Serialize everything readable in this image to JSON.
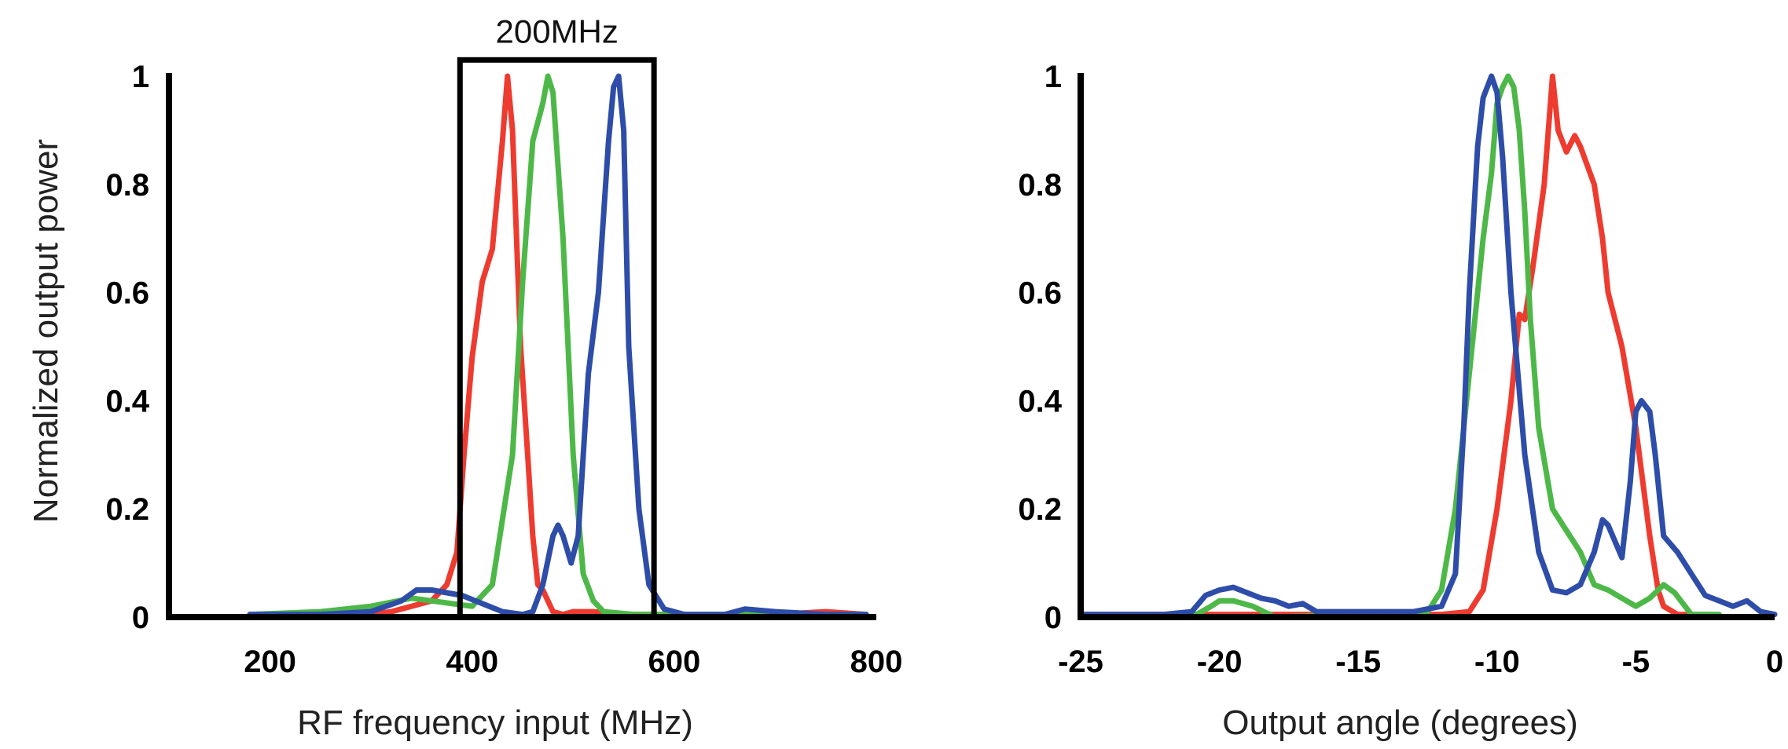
{
  "chart_data": [
    {
      "type": "line",
      "title": "",
      "xlabel": "RF frequency input (MHz)",
      "ylabel": "Normalized output power",
      "xlim": [
        100,
        800
      ],
      "ylim": [
        0,
        1
      ],
      "xticks": [
        200,
        400,
        600,
        800
      ],
      "yticks": [
        0,
        0.2,
        0.4,
        0.6,
        0.8,
        1
      ],
      "ytick_labels": [
        "0",
        "0.2",
        "0.4",
        "0.6",
        "0.8",
        "1"
      ],
      "grid": false,
      "legend": "none",
      "annotation": {
        "text": "200MHz",
        "x_range": [
          388,
          580
        ],
        "y_range": [
          0,
          1.03
        ]
      },
      "series": [
        {
          "color": "#ee3b2f",
          "x": [
            180,
            250,
            300,
            320,
            340,
            360,
            375,
            385,
            392,
            400,
            410,
            420,
            430,
            435,
            440,
            448,
            455,
            460,
            465,
            470,
            480,
            490,
            500,
            520,
            550,
            600,
            650,
            700,
            750,
            790
          ],
          "y": [
            0.005,
            0.005,
            0.005,
            0.01,
            0.02,
            0.03,
            0.06,
            0.12,
            0.3,
            0.48,
            0.62,
            0.68,
            0.88,
            1.0,
            0.9,
            0.5,
            0.3,
            0.15,
            0.06,
            0.05,
            0.01,
            0.005,
            0.01,
            0.01,
            0.005,
            0.005,
            0.005,
            0.005,
            0.01,
            0.005
          ]
        },
        {
          "color": "#4db848",
          "x": [
            180,
            250,
            300,
            340,
            360,
            380,
            400,
            420,
            440,
            450,
            460,
            470,
            475,
            480,
            490,
            500,
            510,
            520,
            530,
            560,
            600,
            650,
            700,
            750,
            790
          ],
          "y": [
            0.005,
            0.01,
            0.02,
            0.035,
            0.03,
            0.025,
            0.02,
            0.06,
            0.3,
            0.62,
            0.88,
            0.95,
            1.0,
            0.97,
            0.7,
            0.3,
            0.08,
            0.03,
            0.01,
            0.005,
            0.005,
            0.005,
            0.005,
            0.005,
            0.005
          ]
        },
        {
          "color": "#2e4da8",
          "x": [
            180,
            250,
            300,
            330,
            345,
            360,
            375,
            390,
            410,
            430,
            450,
            460,
            470,
            480,
            485,
            490,
            498,
            505,
            515,
            525,
            535,
            540,
            545,
            550,
            555,
            565,
            575,
            590,
            610,
            650,
            670,
            700,
            750,
            790
          ],
          "y": [
            0.005,
            0.005,
            0.01,
            0.03,
            0.05,
            0.05,
            0.045,
            0.04,
            0.025,
            0.01,
            0.005,
            0.01,
            0.06,
            0.15,
            0.17,
            0.15,
            0.1,
            0.15,
            0.45,
            0.6,
            0.88,
            0.98,
            1.0,
            0.9,
            0.5,
            0.2,
            0.06,
            0.015,
            0.005,
            0.005,
            0.015,
            0.01,
            0.005,
            0.005
          ]
        }
      ]
    },
    {
      "type": "line",
      "title": "",
      "xlabel": "Output angle (degrees)",
      "ylabel": "",
      "xlim": [
        -25,
        0
      ],
      "ylim": [
        0,
        1
      ],
      "xticks": [
        -25,
        -20,
        -15,
        -10,
        -5,
        0
      ],
      "yticks": [
        0,
        0.2,
        0.4,
        0.6,
        0.8,
        1
      ],
      "ytick_labels": [
        "0",
        "0.2",
        "0.4",
        "0.6",
        "0.8",
        "1"
      ],
      "grid": false,
      "legend": "none",
      "series": [
        {
          "color": "#ee3b2f",
          "x": [
            -25,
            -20,
            -15,
            -12,
            -11,
            -10.5,
            -10,
            -9.5,
            -9.2,
            -9,
            -8.7,
            -8.3,
            -8,
            -7.8,
            -7.5,
            -7.2,
            -7,
            -6.5,
            -6.2,
            -6,
            -5.5,
            -5,
            -4.5,
            -4.2,
            -4,
            -3.5,
            -3
          ],
          "y": [
            0.005,
            0.005,
            0.005,
            0.005,
            0.01,
            0.05,
            0.2,
            0.4,
            0.56,
            0.55,
            0.65,
            0.8,
            1.0,
            0.9,
            0.86,
            0.89,
            0.87,
            0.8,
            0.7,
            0.6,
            0.5,
            0.35,
            0.15,
            0.05,
            0.02,
            0.005,
            0.005
          ]
        },
        {
          "color": "#4db848",
          "x": [
            -25,
            -21,
            -20.3,
            -20,
            -19.5,
            -18.8,
            -18,
            -15,
            -12.5,
            -12,
            -11.5,
            -11,
            -10.5,
            -10.2,
            -10,
            -9.8,
            -9.6,
            -9.4,
            -9.2,
            -9,
            -8.8,
            -8.5,
            -8,
            -7.5,
            -7,
            -6.5,
            -6,
            -5.5,
            -5,
            -4.5,
            -4,
            -3.6,
            -3,
            -2
          ],
          "y": [
            0.0,
            0.0,
            0.02,
            0.03,
            0.03,
            0.02,
            0.0,
            0.005,
            0.01,
            0.05,
            0.2,
            0.45,
            0.7,
            0.82,
            0.95,
            0.98,
            1.0,
            0.98,
            0.9,
            0.75,
            0.55,
            0.35,
            0.2,
            0.16,
            0.12,
            0.06,
            0.05,
            0.035,
            0.02,
            0.035,
            0.06,
            0.045,
            0.005,
            0.005
          ]
        },
        {
          "color": "#2e4da8",
          "x": [
            -25,
            -22,
            -21,
            -20.5,
            -20,
            -19.5,
            -19,
            -18.5,
            -18,
            -17.5,
            -17,
            -16.5,
            -15,
            -13,
            -12,
            -11.5,
            -11.2,
            -11,
            -10.7,
            -10.5,
            -10.2,
            -10,
            -9.8,
            -9.5,
            -9,
            -8.5,
            -8,
            -7.5,
            -7,
            -6.5,
            -6.2,
            -6,
            -5.5,
            -5.2,
            -5,
            -4.8,
            -4.5,
            -4.3,
            -4,
            -3.5,
            -3,
            -2.5,
            -2,
            -1.5,
            -1,
            -0.5,
            0
          ],
          "y": [
            0.005,
            0.005,
            0.01,
            0.04,
            0.05,
            0.055,
            0.045,
            0.035,
            0.03,
            0.02,
            0.025,
            0.01,
            0.01,
            0.01,
            0.02,
            0.08,
            0.35,
            0.6,
            0.87,
            0.96,
            1.0,
            0.97,
            0.85,
            0.6,
            0.3,
            0.12,
            0.05,
            0.045,
            0.06,
            0.12,
            0.18,
            0.17,
            0.11,
            0.25,
            0.38,
            0.4,
            0.38,
            0.3,
            0.15,
            0.12,
            0.08,
            0.04,
            0.03,
            0.02,
            0.03,
            0.01,
            0.005
          ]
        }
      ]
    }
  ]
}
